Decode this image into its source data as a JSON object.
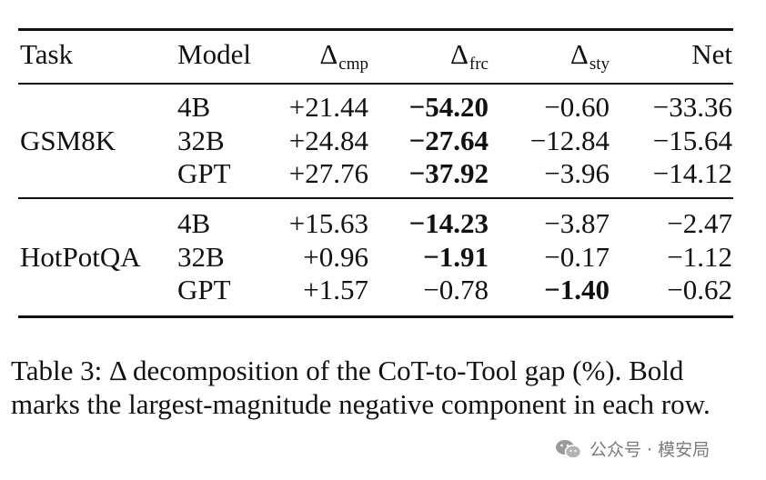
{
  "table": {
    "headers": {
      "task": "Task",
      "model": "Model",
      "cmp": {
        "symbol": "Δ",
        "sub": "cmp"
      },
      "frc": {
        "symbol": "Δ",
        "sub": "frc"
      },
      "sty": {
        "symbol": "Δ",
        "sub": "sty"
      },
      "net": "Net"
    },
    "groups": [
      {
        "task": "GSM8K",
        "rows": [
          {
            "model": "4B",
            "cmp": "+21.44",
            "frc": "−54.20",
            "sty": "−0.60",
            "net": "−33.36",
            "bold": "frc"
          },
          {
            "model": "32B",
            "cmp": "+24.84",
            "frc": "−27.64",
            "sty": "−12.84",
            "net": "−15.64",
            "bold": "frc"
          },
          {
            "model": "GPT",
            "cmp": "+27.76",
            "frc": "−37.92",
            "sty": "−3.96",
            "net": "−14.12",
            "bold": "frc"
          }
        ]
      },
      {
        "task": "HotPotQA",
        "rows": [
          {
            "model": "4B",
            "cmp": "+15.63",
            "frc": "−14.23",
            "sty": "−3.87",
            "net": "−2.47",
            "bold": "frc"
          },
          {
            "model": "32B",
            "cmp": "+0.96",
            "frc": "−1.91",
            "sty": "−0.17",
            "net": "−1.12",
            "bold": "frc"
          },
          {
            "model": "GPT",
            "cmp": "+1.57",
            "frc": "−0.78",
            "sty": "−1.40",
            "net": "−0.62",
            "bold": "sty"
          }
        ]
      }
    ]
  },
  "caption": "Table 3: Δ decomposition of the CoT-to-Tool gap (%). Bold marks the largest-magnitude negative component in each row.",
  "watermark": {
    "text": "公众号 · 模安局",
    "icon": "wechat-icon"
  }
}
